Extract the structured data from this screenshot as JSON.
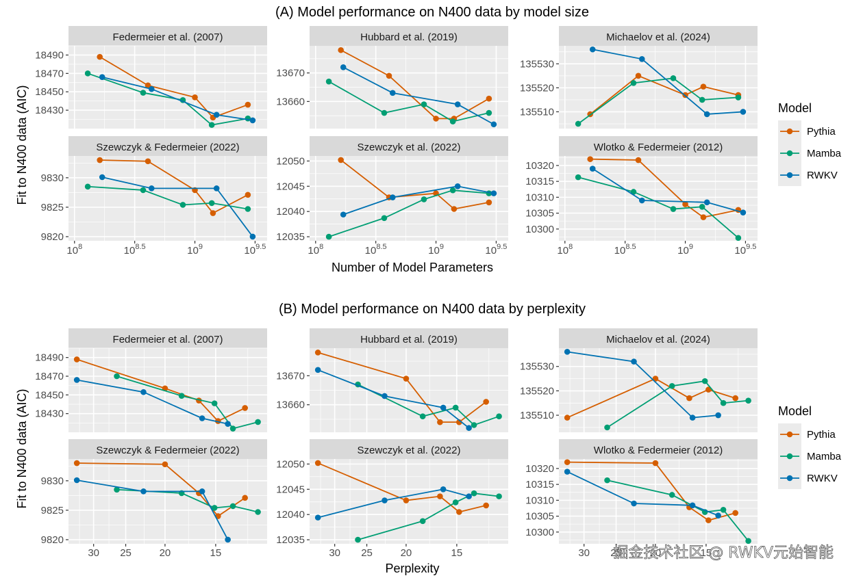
{
  "chart_data": [
    {
      "type": "line",
      "section_title": "(A) Model performance on N400 data by model size",
      "xlabel": "Number of Model Parameters",
      "ylabel": "Fit to N400 data (AIC)",
      "x_scale": "log10",
      "x_ticks": [
        8,
        8.5,
        9,
        9.5
      ],
      "x_tick_labels": [
        "10^8",
        "10^8.5",
        "10^9",
        "10^9.5"
      ],
      "xlim_log10": [
        7.95,
        9.6
      ],
      "legend": {
        "title": "Model",
        "position": "right"
      },
      "series_colors": {
        "Pythia": "#D55E00",
        "Mamba": "#009E73",
        "RWKV": "#0072B2"
      },
      "x_log10_by_model": {
        "Pythia": [
          8.21,
          8.61,
          9.0,
          9.15,
          9.44
        ],
        "Mamba": [
          8.11,
          8.57,
          8.9,
          9.14,
          9.44
        ],
        "RWKV": [
          8.23,
          8.64,
          9.18,
          9.48
        ]
      },
      "panels": [
        {
          "title": "Federmeier et al. (2007)",
          "yticks": [
            18430,
            18450,
            18470,
            18490
          ],
          "ylim": [
            18410,
            18500
          ],
          "series": {
            "Pythia": [
              18488,
              18457,
              18444,
              18422,
              18436
            ],
            "Mamba": [
              18470,
              18449,
              18441,
              18414,
              18421
            ],
            "RWKV": [
              18466,
              18453,
              18425,
              18419
            ]
          }
        },
        {
          "title": "Hubbard et al. (2019)",
          "yticks": [
            13660,
            13670
          ],
          "ylim": [
            13650.5,
            13679.5
          ],
          "series": {
            "Pythia": [
              13678,
              13669,
              13654,
              13654,
              13661
            ],
            "Mamba": [
              13667,
              13656,
              13659,
              13653,
              13656
            ],
            "RWKV": [
              13672,
              13663,
              13659,
              13652
            ]
          }
        },
        {
          "title": "Michaelov et al. (2024)",
          "yticks": [
            135510,
            135520,
            135530
          ],
          "ylim": [
            135503,
            135537.5
          ],
          "series": {
            "Pythia": [
              135509,
              135525,
              135517,
              135520.5,
              135517
            ],
            "Mamba": [
              135505,
              135522,
              135524,
              135515,
              135516
            ],
            "RWKV": [
              135536,
              135532,
              135509,
              135510
            ]
          }
        },
        {
          "title": "Szewczyk & Federmeier (2022)",
          "yticks": [
            9820,
            9825,
            9830
          ],
          "ylim": [
            9819.3,
            9833.7
          ],
          "series": {
            "Pythia": [
              9833.0,
              9832.8,
              9827.9,
              9824.0,
              9827.1
            ],
            "Mamba": [
              9828.5,
              9827.9,
              9825.4,
              9825.7,
              9824.7
            ],
            "RWKV": [
              9830.1,
              9828.2,
              9828.2,
              9820.0
            ]
          }
        },
        {
          "title": "Szewczyk et al. (2022)",
          "yticks": [
            12035,
            12040,
            12045,
            12050
          ],
          "ylim": [
            12034.2,
            12051
          ]
        },
        {
          "title": "Wlotko & Federmeier (2012)",
          "yticks": [
            10300,
            10305,
            10310,
            10315,
            10320
          ],
          "ylim": [
            10296.3,
            10323
          ]
        }
      ]
    },
    {
      "type": "line",
      "section_title": "(B) Model performance on N400 data by perplexity",
      "xlabel": "Perplexity",
      "ylabel": "Fit to N400 data (AIC)",
      "x_scale": "log, reversed",
      "x_ticks": [
        30,
        25,
        20,
        15
      ],
      "x_tick_labels": [
        "30",
        "25",
        "20",
        "15"
      ],
      "xlim": [
        34.6,
        11.2
      ],
      "legend": {
        "title": "Model",
        "position": "right"
      },
      "series_colors": {
        "Pythia": "#D55E00",
        "Mamba": "#009E73",
        "RWKV": "#0072B2"
      },
      "x_by_model": {
        "Pythia": [
          33.0,
          20.0,
          16.5,
          14.8,
          12.7
        ],
        "Mamba": [
          26.3,
          18.2,
          15.1,
          13.6,
          11.8
        ],
        "RWKV": [
          33.0,
          22.6,
          16.2,
          14.0
        ]
      },
      "panels_same_as": "A"
    }
  ],
  "panel_series_extra": {
    "Szewczyk et al. (2022)": {
      "Pythia": [
        12050.2,
        12042.8,
        12043.6,
        12040.5,
        12041.8
      ],
      "Mamba": [
        12035.0,
        12038.7,
        12042.4,
        12044.2,
        12043.6
      ],
      "RWKV": [
        12039.4,
        12042.8,
        12045.0,
        12043.6
      ]
    },
    "Wlotko & Federmeier (2012)": {
      "Pythia": [
        10322.0,
        10321.7,
        10307.8,
        10303.7,
        10306.0
      ],
      "Mamba": [
        10316.3,
        10311.7,
        10306.3,
        10307.0,
        10297.2
      ],
      "RWKV": [
        10319.0,
        10309.0,
        10308.4,
        10305.2
      ]
    }
  },
  "legend_items": [
    "Pythia",
    "Mamba",
    "RWKV"
  ],
  "watermark": "掘金技术社区 @ RWKV元始智能"
}
